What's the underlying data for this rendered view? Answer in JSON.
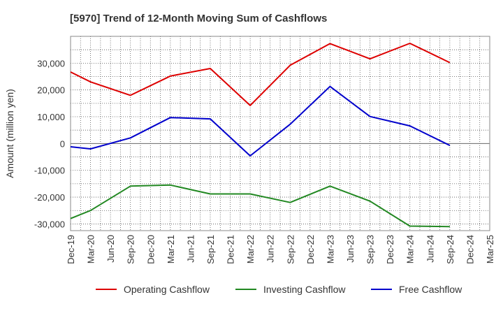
{
  "chart_data": {
    "type": "line",
    "title": "[5970]  Trend of 12-Month Moving Sum of Cashflows",
    "ylabel": "Amount (million yen)",
    "xlabel": "",
    "ylim": [
      -32500,
      40000
    ],
    "yticks": [
      30000,
      20000,
      10000,
      0,
      -10000,
      -20000,
      -30000
    ],
    "ytick_labels": [
      "30,000",
      "20,000",
      "10,000",
      "0",
      "-10,000",
      "-20,000",
      "-30,000"
    ],
    "categories": [
      "Dec-19",
      "Mar-20",
      "Jun-20",
      "Sep-20",
      "Dec-20",
      "Mar-21",
      "Jun-21",
      "Sep-21",
      "Dec-21",
      "Mar-22",
      "Jun-22",
      "Sep-22",
      "Dec-22",
      "Mar-23",
      "Jun-23",
      "Sep-23",
      "Dec-23",
      "Mar-24",
      "Jun-24",
      "Sep-24",
      "Dec-24",
      "Mar-25"
    ],
    "grid": true,
    "legend_position": "bottom",
    "series": [
      {
        "name": "Operating Cashflow",
        "color": "#dd0000",
        "points": [
          {
            "x": "Dec-19",
            "y": 26700
          },
          {
            "x": "Mar-20",
            "y": 23000
          },
          {
            "x": "Sep-20",
            "y": 18000
          },
          {
            "x": "Mar-21",
            "y": 25200
          },
          {
            "x": "Sep-21",
            "y": 28000
          },
          {
            "x": "Mar-22",
            "y": 14200
          },
          {
            "x": "Sep-22",
            "y": 29200
          },
          {
            "x": "Mar-23",
            "y": 37300
          },
          {
            "x": "Sep-23",
            "y": 31600
          },
          {
            "x": "Mar-24",
            "y": 37400
          },
          {
            "x": "Sep-24",
            "y": 30200
          }
        ]
      },
      {
        "name": "Investing Cashflow",
        "color": "#228822",
        "points": [
          {
            "x": "Dec-19",
            "y": -28000
          },
          {
            "x": "Mar-20",
            "y": -25000
          },
          {
            "x": "Sep-20",
            "y": -15900
          },
          {
            "x": "Mar-21",
            "y": -15500
          },
          {
            "x": "Sep-21",
            "y": -18800
          },
          {
            "x": "Mar-22",
            "y": -18800
          },
          {
            "x": "Sep-22",
            "y": -22000
          },
          {
            "x": "Mar-23",
            "y": -15900
          },
          {
            "x": "Sep-23",
            "y": -21500
          },
          {
            "x": "Mar-24",
            "y": -30800
          },
          {
            "x": "Sep-24",
            "y": -31000
          }
        ]
      },
      {
        "name": "Free Cashflow",
        "color": "#0000cc",
        "points": [
          {
            "x": "Dec-19",
            "y": -1200
          },
          {
            "x": "Mar-20",
            "y": -2000
          },
          {
            "x": "Sep-20",
            "y": 2100
          },
          {
            "x": "Mar-21",
            "y": 9700
          },
          {
            "x": "Sep-21",
            "y": 9200
          },
          {
            "x": "Mar-22",
            "y": -4600
          },
          {
            "x": "Sep-22",
            "y": 7200
          },
          {
            "x": "Mar-23",
            "y": 21300
          },
          {
            "x": "Sep-23",
            "y": 10100
          },
          {
            "x": "Mar-24",
            "y": 6600
          },
          {
            "x": "Sep-24",
            "y": -700
          }
        ]
      }
    ]
  }
}
